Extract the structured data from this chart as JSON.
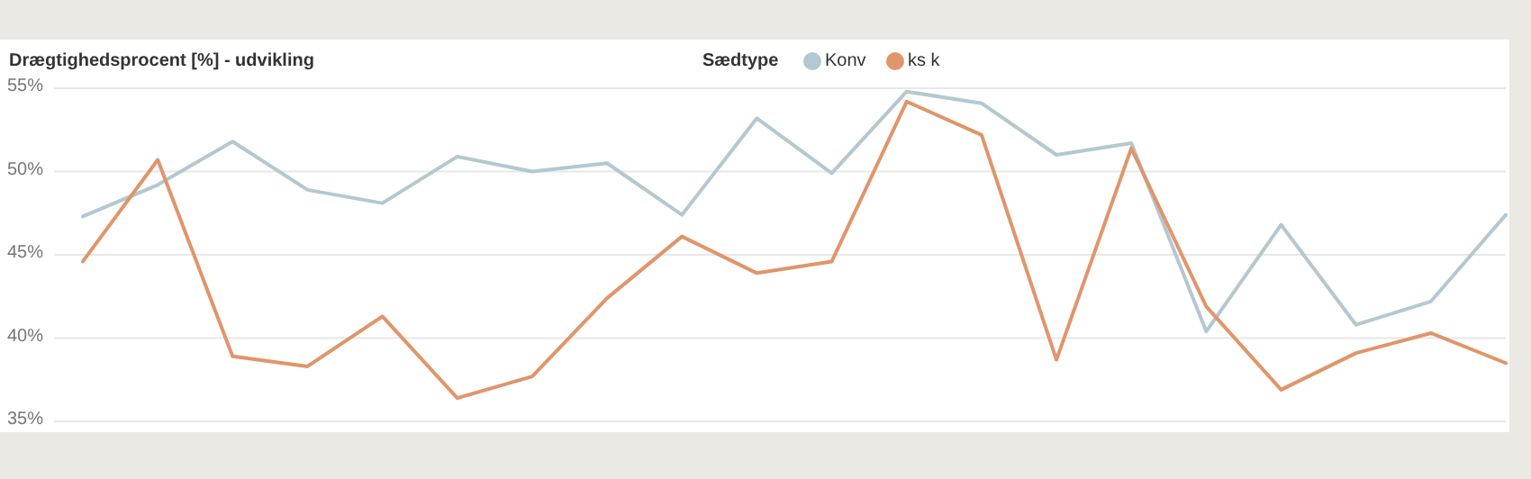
{
  "chart_data": {
    "type": "line",
    "title": "Drægtighedsprocent [%] - udvikling",
    "legend_title": "Sædtype",
    "legend": "top",
    "grid": "y",
    "marker": "none",
    "line_style": "solid",
    "categories": [
      null,
      null,
      null,
      null,
      null,
      null,
      null,
      null,
      null,
      null,
      null,
      null,
      null,
      null,
      null,
      null,
      null,
      null,
      null,
      null
    ],
    "ylim": [
      35,
      55
    ],
    "yticks": [
      {
        "value": 35,
        "label": "35%"
      },
      {
        "value": 40,
        "label": "40%"
      },
      {
        "value": 45,
        "label": "45%"
      },
      {
        "value": 50,
        "label": "50%"
      },
      {
        "value": 55,
        "label": "55%"
      }
    ],
    "series": [
      {
        "name": "Konv",
        "color": "#b3c8d0",
        "values": [
          47.3,
          49.2,
          51.8,
          48.9,
          48.1,
          50.9,
          50.0,
          50.5,
          47.4,
          53.2,
          49.9,
          54.8,
          54.1,
          51.0,
          51.7,
          40.4,
          46.8,
          40.8,
          42.2,
          47.4
        ]
      },
      {
        "name": "ks k",
        "color": "#e0956a",
        "values": [
          44.6,
          50.7,
          38.9,
          38.3,
          41.3,
          36.4,
          37.7,
          42.4,
          46.1,
          43.9,
          44.6,
          54.2,
          52.2,
          38.7,
          51.4,
          41.9,
          36.9,
          39.1,
          40.3,
          38.5
        ]
      }
    ]
  }
}
